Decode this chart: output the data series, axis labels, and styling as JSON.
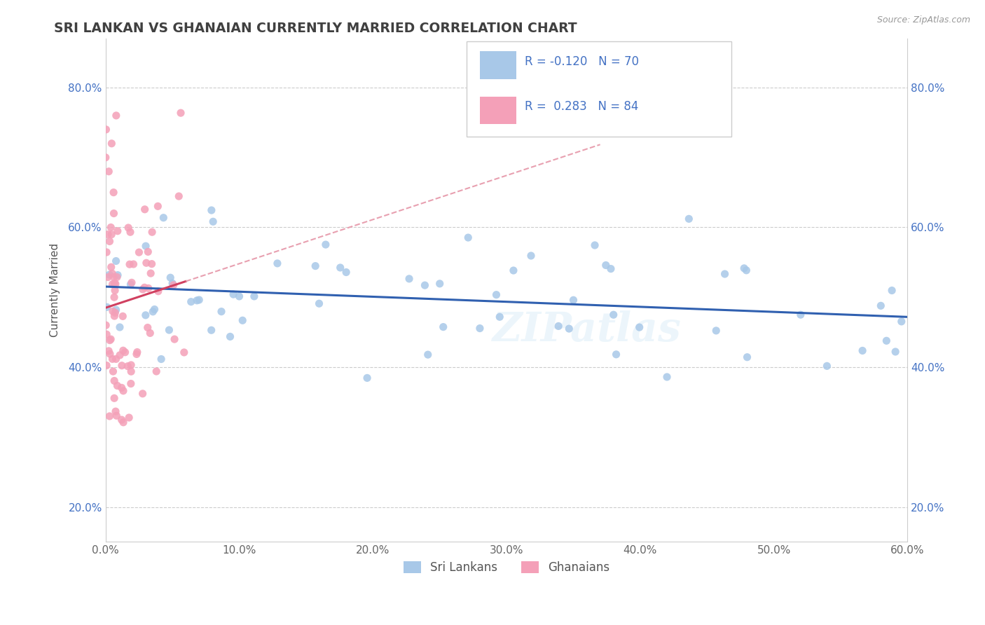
{
  "title": "SRI LANKAN VS GHANAIAN CURRENTLY MARRIED CORRELATION CHART",
  "source_text": "Source: ZipAtlas.com",
  "ylabel": "Currently Married",
  "xlim": [
    0.0,
    0.6
  ],
  "ylim": [
    0.15,
    0.87
  ],
  "xtick_labels": [
    "0.0%",
    "10.0%",
    "20.0%",
    "30.0%",
    "40.0%",
    "50.0%",
    "60.0%"
  ],
  "xtick_vals": [
    0.0,
    0.1,
    0.2,
    0.3,
    0.4,
    0.5,
    0.6
  ],
  "ytick_labels": [
    "20.0%",
    "40.0%",
    "60.0%",
    "80.0%"
  ],
  "ytick_vals": [
    0.2,
    0.4,
    0.6,
    0.8
  ],
  "legend_labels": [
    "Sri Lankans",
    "Ghanaians"
  ],
  "sri_lanka_color": "#a8c8e8",
  "ghana_color": "#f4a0b8",
  "sri_lanka_line_color": "#3060b0",
  "ghana_line_color": "#d04060",
  "ghana_line_dash_color": "#e8a0b0",
  "R_sri": -0.12,
  "N_sri": 70,
  "R_ghana": 0.283,
  "N_ghana": 84,
  "watermark": "ZIPatlas",
  "title_color": "#404040",
  "annotation_color": "#4472c4",
  "sri_lanka_seed": 42,
  "ghana_seed": 99
}
